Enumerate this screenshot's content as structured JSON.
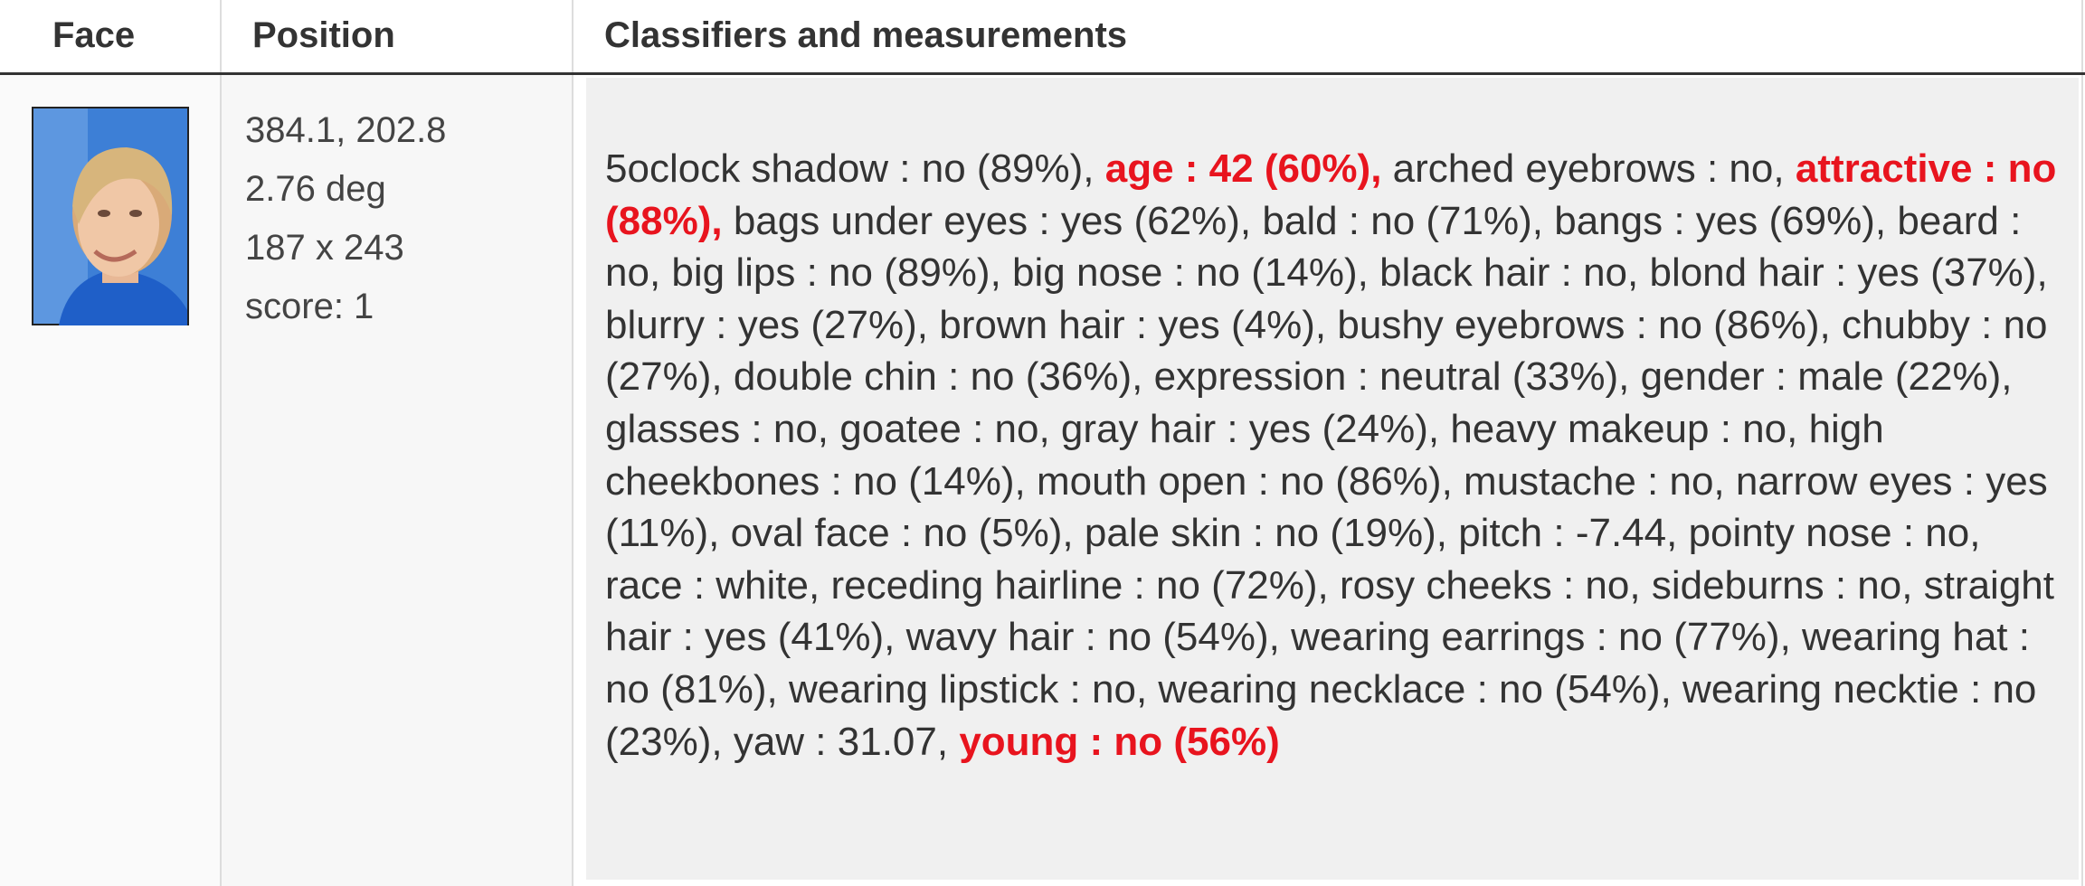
{
  "header": [
    "Face",
    "Position",
    "Classifiers and measurements"
  ],
  "position": [
    "384.1, 202.8",
    "2.76 deg",
    "187 x 243",
    "score: 1"
  ],
  "classifiers": [
    {
      "text": "5oclock shadow : no (89%),"
    },
    {
      "text": "age : 42 (60%),",
      "highlight": true
    },
    {
      "text": "arched eyebrows : no,"
    },
    {
      "text": "attractive : no (88%),",
      "highlight": true
    },
    {
      "text": "bags under eyes : yes (62%),"
    },
    {
      "text": "bald : no (71%),"
    },
    {
      "text": "bangs : yes (69%),"
    },
    {
      "text": "beard : no,"
    },
    {
      "text": "big lips : no (89%),"
    },
    {
      "text": "big nose : no (14%),"
    },
    {
      "text": "black hair : no,"
    },
    {
      "text": "blond hair : yes (37%),"
    },
    {
      "text": "blurry : yes (27%),"
    },
    {
      "text": "brown hair : yes (4%),"
    },
    {
      "text": "bushy eyebrows : no (86%),"
    },
    {
      "text": "chubby : no (27%),"
    },
    {
      "text": "double chin : no (36%),"
    },
    {
      "text": "expression : neutral (33%),"
    },
    {
      "text": "gender : male (22%),"
    },
    {
      "text": "glasses : no,"
    },
    {
      "text": "goatee : no,"
    },
    {
      "text": "gray hair : yes (24%),"
    },
    {
      "text": "heavy makeup : no,"
    },
    {
      "text": "high cheekbones : no (14%),"
    },
    {
      "text": "mouth open : no (86%),"
    },
    {
      "text": "mustache : no,"
    },
    {
      "text": "narrow eyes : yes (11%),"
    },
    {
      "text": "oval face : no (5%),"
    },
    {
      "text": "pale skin : no (19%),"
    },
    {
      "text": "pitch : -7.44,"
    },
    {
      "text": "pointy nose : no,"
    },
    {
      "text": "race : white,"
    },
    {
      "text": "receding hairline : no (72%),"
    },
    {
      "text": "rosy cheeks : no,"
    },
    {
      "text": "sideburns : no,"
    },
    {
      "text": "straight hair : yes (41%),"
    },
    {
      "text": "wavy hair : no (54%),"
    },
    {
      "text": "wearing earrings : no (77%),"
    },
    {
      "text": "wearing hat : no (81%),"
    },
    {
      "text": "wearing lipstick : no,"
    },
    {
      "text": "wearing necklace : no (54%),"
    },
    {
      "text": "wearing necktie : no (23%),"
    },
    {
      "text": "yaw : 31.07,"
    },
    {
      "text": "young : no (56%)",
      "highlight": true
    }
  ]
}
